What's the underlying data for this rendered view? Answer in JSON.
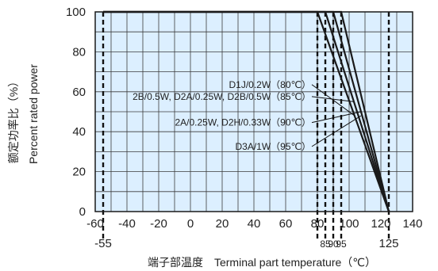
{
  "chart_data": {
    "type": "line",
    "xlabel": "端子部温度　Terminal part temperature（℃）",
    "ylabel_cn": "额定功率比（%）",
    "ylabel_en": "Percent rated power",
    "xlim": [
      -60,
      140
    ],
    "ylim": [
      0,
      100
    ],
    "x_ticks": [
      -60,
      -40,
      -20,
      0,
      20,
      40,
      60,
      80,
      100,
      120,
      140
    ],
    "x_tick_labels": [
      "-60",
      "-40",
      "-20",
      "0",
      "20",
      "40",
      "60",
      "80",
      "100",
      "120",
      "140"
    ],
    "y_ticks": [
      0,
      20,
      40,
      60,
      80,
      100
    ],
    "y_tick_labels": [
      "0",
      "20",
      "40",
      "60",
      "80",
      "100"
    ],
    "grid": true,
    "extra_x_labels": [
      {
        "x": -55,
        "label": "-55"
      },
      {
        "x": 85,
        "label": "85"
      },
      {
        "x": 90,
        "label": "90"
      },
      {
        "x": 95,
        "label": "95"
      },
      {
        "x": 125,
        "label": "125"
      }
    ],
    "dashed_x": [
      -55,
      80,
      85,
      90,
      95,
      125
    ],
    "series": [
      {
        "name": "D1J/0.2W（80℃）",
        "x": [
          -55,
          80,
          125
        ],
        "y": [
          100,
          100,
          0
        ]
      },
      {
        "name": "2B/0.5W, D2A/0.25W, D2B/0.5W（85℃）",
        "x": [
          -55,
          85,
          125
        ],
        "y": [
          100,
          100,
          0
        ]
      },
      {
        "name": "2A/0.25W, D2H/0.33W（90℃）",
        "x": [
          -55,
          90,
          125
        ],
        "y": [
          100,
          100,
          0
        ]
      },
      {
        "name": "D3A/1W（95℃）",
        "x": [
          -55,
          95,
          125
        ],
        "y": [
          100,
          100,
          0
        ]
      }
    ],
    "annotations": [
      {
        "label": "D1J/0.2W（80℃）",
        "point_x": 103.5,
        "point_y": 48,
        "text_y": 62
      },
      {
        "label": "2B/0.5W, D2A/0.25W, D2B/0.5W（85℃）",
        "point_x": 103,
        "point_y": 55,
        "text_y": 56
      },
      {
        "label": "2A/0.25W, D2H/0.33W（90℃）",
        "point_x": 107.5,
        "point_y": 50,
        "text_y": 43
      },
      {
        "label": "D3A/1W（95℃）",
        "point_x": 107.5,
        "point_y": 48,
        "text_y": 31
      }
    ],
    "colors": {
      "plot_bg": "#dcefff",
      "grid": "#3b3b3b",
      "lines": "#1a1a1a"
    }
  }
}
